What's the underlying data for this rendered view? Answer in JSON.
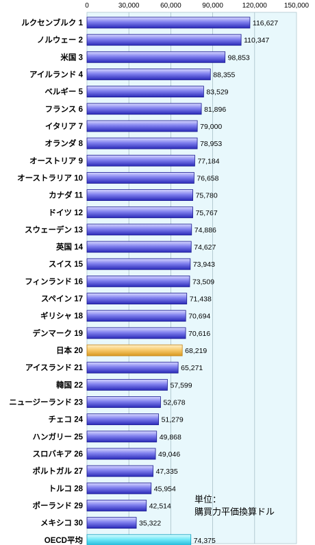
{
  "chart_data": {
    "type": "bar",
    "orientation": "horizontal",
    "title": "",
    "xlim": [
      0,
      150000
    ],
    "x_ticks": [
      "0",
      "30,000",
      "60,000",
      "90,000",
      "120,000",
      "150,000"
    ],
    "grid": "vertical",
    "categories": [
      "ルクセンブルク 1",
      "ノルウェー 2",
      "米国 3",
      "アイルランド 4",
      "ベルギー 5",
      "フランス 6",
      "イタリア 7",
      "オランダ 8",
      "オーストリア 9",
      "オーストラリア 10",
      "カナダ 11",
      "ドイツ 12",
      "スウェーデン 13",
      "英国 14",
      "スイス 15",
      "フィンランド 16",
      "スペイン 17",
      "ギリシャ 18",
      "デンマーク 19",
      "日本 20",
      "アイスランド 21",
      "韓国 22",
      "ニュージーランド 23",
      "チェコ 24",
      "ハンガリー 25",
      "スロバキア 26",
      "ポルトガル 27",
      "トルコ 28",
      "ポーランド 29",
      "メキシコ 30",
      "OECD平均"
    ],
    "values": [
      116627,
      110347,
      98853,
      88355,
      83529,
      81896,
      79000,
      78953,
      77184,
      76658,
      75780,
      75767,
      74886,
      74627,
      73943,
      73509,
      71438,
      70694,
      70616,
      68219,
      65271,
      57599,
      52678,
      51279,
      49868,
      49046,
      47335,
      45954,
      42514,
      35322,
      74375
    ],
    "value_labels": [
      "116,627",
      "110,347",
      "98,853",
      "88,355",
      "83,529",
      "81,896",
      "79,000",
      "78,953",
      "77,184",
      "76,658",
      "75,780",
      "75,767",
      "74,886",
      "74,627",
      "73,943",
      "73,509",
      "71,438",
      "70,694",
      "70,616",
      "68,219",
      "65,271",
      "57,599",
      "52,678",
      "51,279",
      "49,868",
      "49,046",
      "47,335",
      "45,954",
      "42,514",
      "35,322",
      "74,375"
    ],
    "highlight": {
      "日本 20": "#f0b840",
      "OECD平均": "#40d8f0"
    },
    "default_bar_color": "#4a4ad8",
    "plot_background": "#e8f8fc",
    "unit_note": [
      "単位：",
      "購買力平価換算ドル"
    ]
  }
}
